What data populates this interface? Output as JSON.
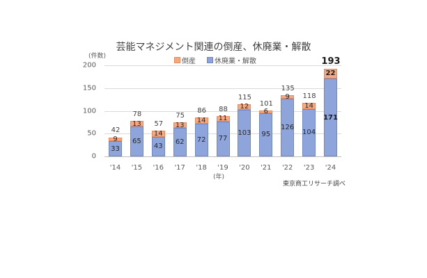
{
  "chart": {
    "title": "芸能マネジメント関連の倒産、休廃業・解散",
    "unit_label": "(件数)",
    "year_label": "(年)",
    "source": "東京商工リサーチ調べ",
    "legend": [
      {
        "label": "倒産",
        "color": "#f4a982"
      },
      {
        "label": "休廃業・解散",
        "color": "#8ea5db"
      }
    ],
    "yticks": [
      "200",
      "150",
      "100",
      "50",
      "0"
    ]
  },
  "chart_data": {
    "type": "bar",
    "stacked": true,
    "title": "芸能マネジメント関連の倒産、休廃業・解散",
    "xlabel": "(年)",
    "ylabel": "(件数)",
    "ylim": [
      0,
      200
    ],
    "yticks": [
      0,
      50,
      100,
      150,
      200
    ],
    "grid": true,
    "legend_position": "top",
    "categories": [
      "'14",
      "'15",
      "'16",
      "'17",
      "'18",
      "'19",
      "'20",
      "'21",
      "'22",
      "'23",
      "'24"
    ],
    "series": [
      {
        "name": "休廃業・解散",
        "color": "#8ea5db",
        "values": [
          33,
          65,
          43,
          62,
          72,
          77,
          103,
          95,
          126,
          104,
          171
        ]
      },
      {
        "name": "倒産",
        "color": "#f4a982",
        "values": [
          9,
          13,
          14,
          13,
          14,
          11,
          12,
          6,
          9,
          14,
          22
        ]
      }
    ],
    "totals": [
      42,
      78,
      57,
      75,
      86,
      88,
      115,
      101,
      135,
      118,
      193
    ],
    "annotations": [
      "東京商工リサーチ調べ"
    ]
  }
}
